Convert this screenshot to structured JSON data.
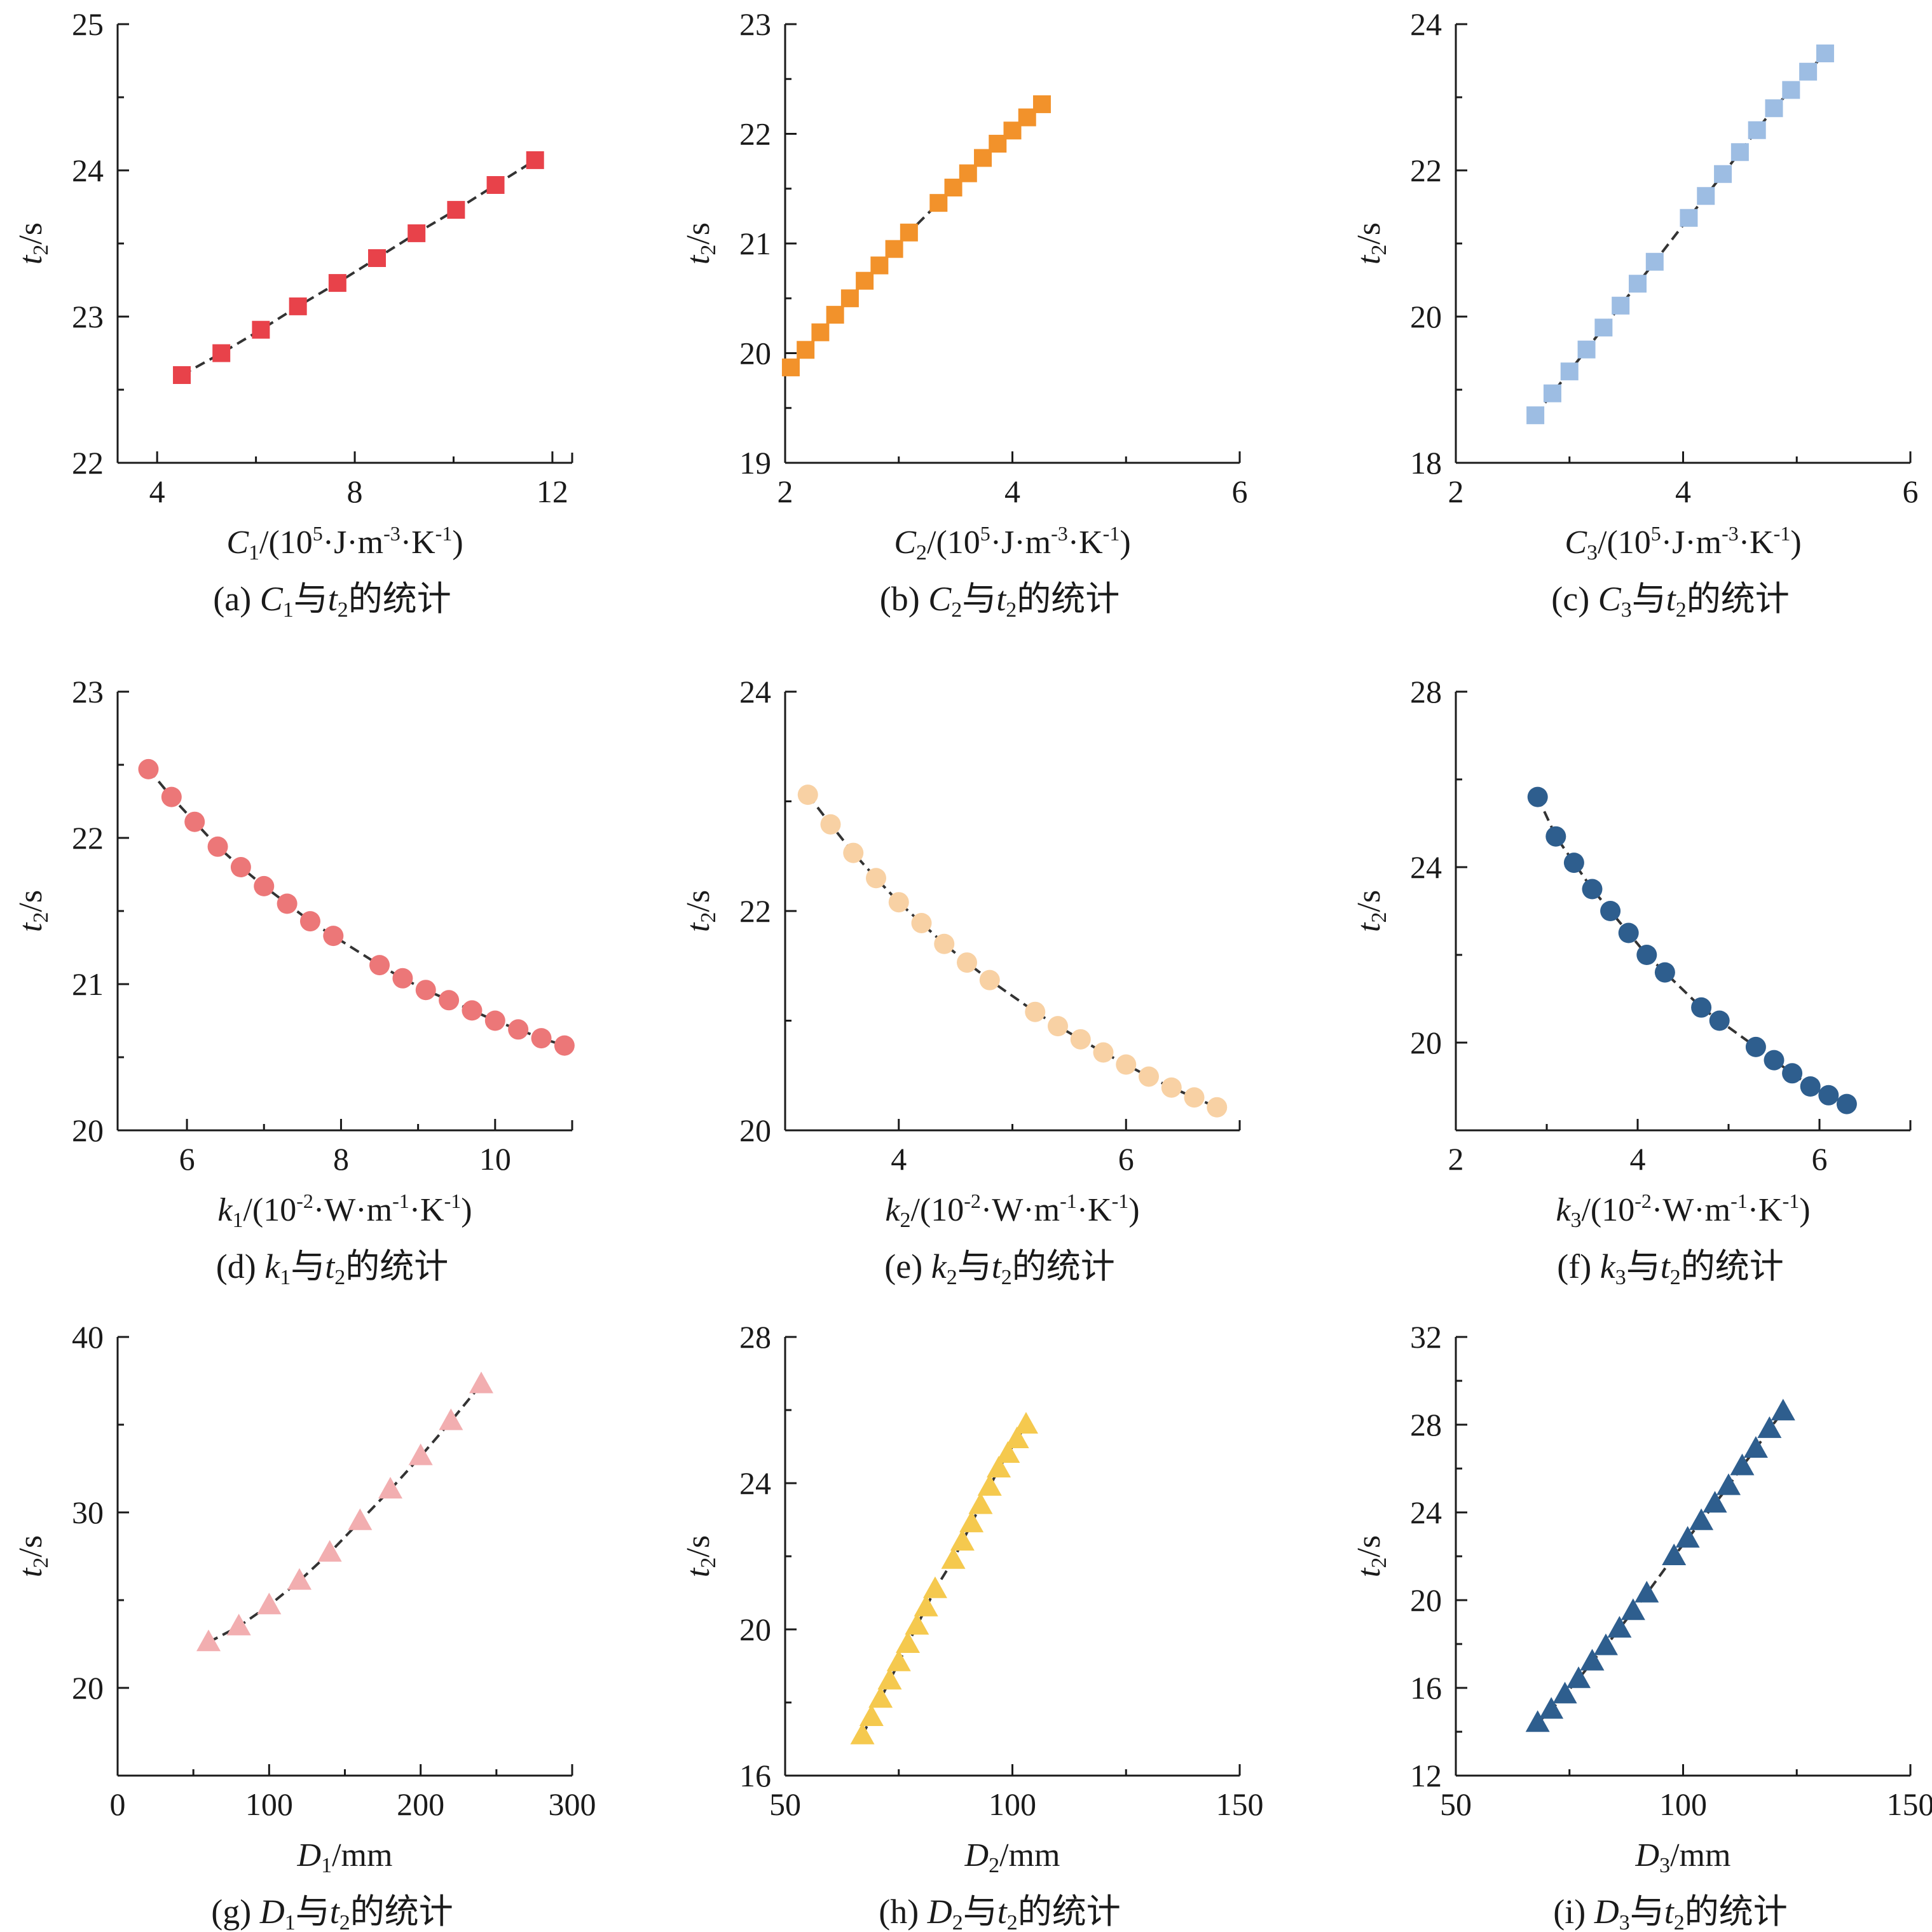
{
  "chart_data": [
    {
      "id": "a",
      "type": "scatter",
      "marker": "square",
      "color": "#E8424A",
      "caption": {
        "prefix": "(a) ",
        "sym": "C",
        "sym_sub": "1",
        "mid": "与",
        "sym2": "t",
        "sym2_sub": "2",
        "suffix": "的统计"
      },
      "xlabel": {
        "sym": "C",
        "sub": "1",
        "pre": "/(10",
        "sup": "5",
        "post": "·J·m",
        "sup2": "-3",
        "post2": "·K",
        "sup3": "-1",
        "end": ")"
      },
      "ylabel": {
        "sym": "t",
        "sub": "2",
        "unit": "/s"
      },
      "xlim": [
        3.2,
        12.4
      ],
      "ylim": [
        22,
        25
      ],
      "xticks": [
        4,
        8,
        12
      ],
      "yticks": [
        22,
        23,
        24,
        25
      ],
      "x": [
        4.5,
        5.3,
        6.1,
        6.85,
        7.65,
        8.45,
        9.25,
        10.05,
        10.85,
        11.65
      ],
      "y": [
        22.6,
        22.75,
        22.91,
        23.07,
        23.23,
        23.4,
        23.57,
        23.73,
        23.9,
        24.07
      ]
    },
    {
      "id": "b",
      "type": "scatter",
      "marker": "square",
      "color": "#F2922B",
      "caption": {
        "prefix": "(b) ",
        "sym": "C",
        "sym_sub": "2",
        "mid": "与",
        "sym2": "t",
        "sym2_sub": "2",
        "suffix": "的统计"
      },
      "xlabel": {
        "sym": "C",
        "sub": "2",
        "pre": "/(10",
        "sup": "5",
        "post": "·J·m",
        "sup2": "-3",
        "post2": "·K",
        "sup3": "-1",
        "end": ")"
      },
      "ylabel": {
        "sym": "t",
        "sub": "2",
        "unit": "/s"
      },
      "xlim": [
        2,
        6
      ],
      "ylim": [
        19,
        23
      ],
      "xticks": [
        2,
        4,
        6
      ],
      "yticks": [
        19,
        20,
        21,
        22,
        23
      ],
      "x": [
        2.05,
        2.18,
        2.31,
        2.44,
        2.57,
        2.7,
        2.83,
        2.96,
        3.09,
        3.35,
        3.48,
        3.61,
        3.74,
        3.87,
        4.0,
        4.13,
        4.26
      ],
      "y": [
        19.87,
        20.03,
        20.19,
        20.35,
        20.5,
        20.66,
        20.8,
        20.95,
        21.1,
        21.37,
        21.51,
        21.64,
        21.78,
        21.91,
        22.03,
        22.15,
        22.27
      ]
    },
    {
      "id": "c",
      "type": "scatter",
      "marker": "square",
      "color": "#9DBDE3",
      "caption": {
        "prefix": "(c) ",
        "sym": "C",
        "sym_sub": "3",
        "mid": "与",
        "sym2": "t",
        "sym2_sub": "2",
        "suffix": "的统计"
      },
      "xlabel": {
        "sym": "C",
        "sub": "3",
        "pre": "/(10",
        "sup": "5",
        "post": "·J·m",
        "sup2": "-3",
        "post2": "·K",
        "sup3": "-1",
        "end": ")"
      },
      "ylabel": {
        "sym": "t",
        "sub": "2",
        "unit": "/s"
      },
      "xlim": [
        2,
        6
      ],
      "ylim": [
        18,
        24
      ],
      "xticks": [
        2,
        4,
        6
      ],
      "yticks": [
        18,
        20,
        22,
        24
      ],
      "x": [
        2.7,
        2.85,
        3.0,
        3.15,
        3.3,
        3.45,
        3.6,
        3.75,
        4.05,
        4.2,
        4.35,
        4.5,
        4.65,
        4.8,
        4.95,
        5.1,
        5.25
      ],
      "y": [
        18.65,
        18.95,
        19.25,
        19.55,
        19.85,
        20.15,
        20.45,
        20.75,
        21.35,
        21.65,
        21.95,
        22.25,
        22.55,
        22.85,
        23.1,
        23.35,
        23.6
      ]
    },
    {
      "id": "d",
      "type": "scatter",
      "marker": "circle",
      "color": "#EC7778",
      "caption": {
        "prefix": "(d) ",
        "sym": "k",
        "sym_sub": "1",
        "mid": "与",
        "sym2": "t",
        "sym2_sub": "2",
        "suffix": "的统计"
      },
      "xlabel": {
        "sym": "k",
        "sub": "1",
        "pre": "/(10",
        "sup": "-2",
        "post": "·W·m",
        "sup2": "-1",
        "post2": "·K",
        "sup3": "-1",
        "end": ")"
      },
      "ylabel": {
        "sym": "t",
        "sub": "2",
        "unit": "/s"
      },
      "xlim": [
        5.1,
        11.0
      ],
      "ylim": [
        20,
        23
      ],
      "xticks": [
        6,
        8,
        10
      ],
      "yticks": [
        20,
        21,
        22,
        23
      ],
      "x": [
        5.5,
        5.8,
        6.1,
        6.4,
        6.7,
        7.0,
        7.3,
        7.6,
        7.9,
        8.5,
        8.8,
        9.1,
        9.4,
        9.7,
        10.0,
        10.3,
        10.6,
        10.9
      ],
      "y": [
        22.47,
        22.28,
        22.11,
        21.94,
        21.8,
        21.67,
        21.55,
        21.43,
        21.33,
        21.13,
        21.04,
        20.96,
        20.89,
        20.82,
        20.75,
        20.69,
        20.63,
        20.58
      ]
    },
    {
      "id": "e",
      "type": "scatter",
      "marker": "circle",
      "color": "#F8D1A4",
      "caption": {
        "prefix": "(e) ",
        "sym": "k",
        "sym_sub": "2",
        "mid": "与",
        "sym2": "t",
        "sym2_sub": "2",
        "suffix": "的统计"
      },
      "xlabel": {
        "sym": "k",
        "sub": "2",
        "pre": "/(10",
        "sup": "-2",
        "post": "·W·m",
        "sup2": "-1",
        "post2": "·K",
        "sup3": "-1",
        "end": ")"
      },
      "ylabel": {
        "sym": "t",
        "sub": "2",
        "unit": "/s"
      },
      "xlim": [
        3.0,
        7.0
      ],
      "ylim": [
        20,
        24
      ],
      "xticks": [
        4,
        6
      ],
      "yticks": [
        20,
        22,
        24
      ],
      "x": [
        3.2,
        3.4,
        3.6,
        3.8,
        4.0,
        4.2,
        4.4,
        4.6,
        4.8,
        5.2,
        5.4,
        5.6,
        5.8,
        6.0,
        6.2,
        6.4,
        6.6,
        6.8
      ],
      "y": [
        23.06,
        22.79,
        22.53,
        22.3,
        22.08,
        21.89,
        21.7,
        21.53,
        21.37,
        21.08,
        20.95,
        20.83,
        20.71,
        20.6,
        20.49,
        20.39,
        20.3,
        20.21
      ]
    },
    {
      "id": "f",
      "type": "scatter",
      "marker": "circle",
      "color": "#2E5E8E",
      "caption": {
        "prefix": "(f) ",
        "sym": "k",
        "sym_sub": "3",
        "mid": "与",
        "sym2": "t",
        "sym2_sub": "2",
        "suffix": "的统计"
      },
      "xlabel": {
        "sym": "k",
        "sub": "3",
        "pre": "/(10",
        "sup": "-2",
        "post": "·W·m",
        "sup2": "-1",
        "post2": "·K",
        "sup3": "-1",
        "end": ")"
      },
      "ylabel": {
        "sym": "t",
        "sub": "2",
        "unit": "/s"
      },
      "xlim": [
        2,
        7
      ],
      "ylim": [
        18,
        28
      ],
      "xticks": [
        2,
        4,
        6
      ],
      "yticks": [
        20,
        24,
        28
      ],
      "x": [
        2.9,
        3.1,
        3.3,
        3.5,
        3.7,
        3.9,
        4.1,
        4.3,
        4.7,
        4.9,
        5.3,
        5.5,
        5.7,
        5.9,
        6.1,
        6.3
      ],
      "y": [
        25.6,
        24.7,
        24.1,
        23.5,
        23.0,
        22.5,
        22.0,
        21.6,
        20.8,
        20.5,
        19.9,
        19.6,
        19.3,
        19.0,
        18.8,
        18.6
      ]
    },
    {
      "id": "g",
      "type": "scatter",
      "marker": "triangle",
      "color": "#F2AEB0",
      "caption": {
        "prefix": "(g) ",
        "sym": "D",
        "sym_sub": "1",
        "mid": "与",
        "sym2": "t",
        "sym2_sub": "2",
        "suffix": "的统计"
      },
      "xlabel": {
        "sym": "D",
        "sub": "1",
        "pre": "/mm",
        "sup": "",
        "post": "",
        "sup2": "",
        "post2": "",
        "sup3": "",
        "end": ""
      },
      "ylabel": {
        "sym": "t",
        "sub": "2",
        "unit": "/s"
      },
      "xlim": [
        0,
        300
      ],
      "ylim": [
        15,
        40
      ],
      "xticks": [
        0,
        100,
        200,
        300
      ],
      "yticks": [
        20,
        30,
        40
      ],
      "x": [
        60,
        80,
        100,
        120,
        140,
        160,
        180,
        200,
        220,
        240
      ],
      "y": [
        22.6,
        23.5,
        24.7,
        26.1,
        27.7,
        29.5,
        31.3,
        33.2,
        35.2,
        37.3
      ]
    },
    {
      "id": "h",
      "type": "scatter",
      "marker": "triangle",
      "color": "#F5C94E",
      "caption": {
        "prefix": "(h) ",
        "sym": "D",
        "sym_sub": "2",
        "mid": "与",
        "sym2": "t",
        "sym2_sub": "2",
        "suffix": "的统计"
      },
      "xlabel": {
        "sym": "D",
        "sub": "2",
        "pre": "/mm",
        "sup": "",
        "post": "",
        "sup2": "",
        "post2": "",
        "sup3": "",
        "end": ""
      },
      "ylabel": {
        "sym": "t",
        "sub": "2",
        "unit": "/s"
      },
      "xlim": [
        50,
        150
      ],
      "ylim": [
        16,
        28
      ],
      "xticks": [
        50,
        100,
        150
      ],
      "yticks": [
        16,
        20,
        24,
        28
      ],
      "x": [
        67,
        69,
        71,
        73,
        75,
        77,
        79,
        81,
        83,
        87,
        89,
        91,
        93,
        95,
        97,
        99,
        101,
        103
      ],
      "y": [
        17.1,
        17.6,
        18.1,
        18.6,
        19.1,
        19.6,
        20.1,
        20.6,
        21.1,
        21.9,
        22.4,
        22.9,
        23.4,
        23.9,
        24.4,
        24.8,
        25.2,
        25.6
      ]
    },
    {
      "id": "i",
      "type": "scatter",
      "marker": "triangle",
      "color": "#2E5E8E",
      "caption": {
        "prefix": "(i) ",
        "sym": "D",
        "sym_sub": "3",
        "mid": "与",
        "sym2": "t",
        "sym2_sub": "2",
        "suffix": "的统计"
      },
      "xlabel": {
        "sym": "D",
        "sub": "3",
        "pre": "/mm",
        "sup": "",
        "post": "",
        "sup2": "",
        "post2": "",
        "sup3": "",
        "end": ""
      },
      "ylabel": {
        "sym": "t",
        "sub": "2",
        "unit": "/s"
      },
      "xlim": [
        50,
        150
      ],
      "ylim": [
        12,
        32
      ],
      "xticks": [
        50,
        100,
        150
      ],
      "yticks": [
        12,
        16,
        20,
        24,
        28,
        32
      ],
      "x": [
        68,
        71,
        74,
        77,
        80,
        83,
        86,
        89,
        92,
        98,
        101,
        104,
        107,
        110,
        113,
        116,
        119,
        122
      ],
      "y": [
        14.4,
        15.0,
        15.7,
        16.4,
        17.2,
        17.9,
        18.7,
        19.5,
        20.3,
        22.0,
        22.8,
        23.6,
        24.4,
        25.2,
        26.1,
        26.9,
        27.8,
        28.6
      ]
    }
  ]
}
